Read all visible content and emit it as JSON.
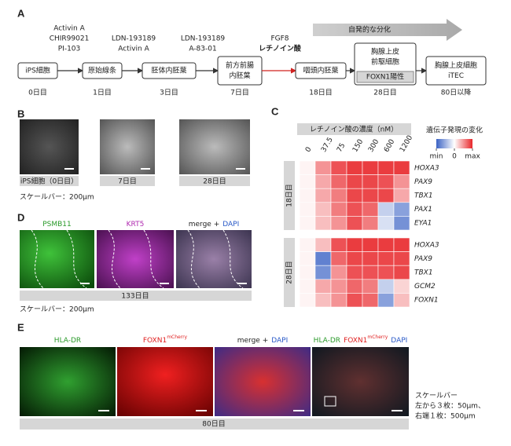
{
  "panels": {
    "A": {
      "label": "A",
      "arrow": "自発的な分化",
      "stages": [
        {
          "name": [
            "iPS細胞"
          ],
          "day": "0日目"
        },
        {
          "name": [
            "原始線条"
          ],
          "day": "1日目"
        },
        {
          "name": [
            "胚体内胚葉"
          ],
          "day": "3日目"
        },
        {
          "name": [
            "前方前腸",
            "内胚葉"
          ],
          "day": "7日目"
        },
        {
          "name": [
            "咽頭内胚葉"
          ],
          "day": "18日目"
        },
        {
          "name": [
            "胸腺上皮",
            "前駆細胞"
          ],
          "marker": "FOXN1陽性",
          "day": "28日目"
        },
        {
          "name": [
            "胸腺上皮細胞",
            "iTEC"
          ],
          "day": "80日以降"
        }
      ],
      "factors": [
        [
          "Activin A",
          "CHIR99021",
          "PI-103"
        ],
        [
          "LDN-193189",
          "Activin A"
        ],
        [
          "LDN-193189",
          "A-83-01"
        ],
        [
          "FGF8",
          "レチノイン酸"
        ]
      ]
    },
    "B": {
      "label": "B",
      "images": [
        "iPS細胞（0日目）",
        "7日目",
        "28日目"
      ],
      "scale": "スケールバー：200μm"
    },
    "C": {
      "label": "C",
      "header": "レチノイン酸の濃度（nM）",
      "concentrations": [
        0,
        37.5,
        75,
        150,
        300,
        600,
        1200
      ],
      "legend": {
        "title": "遺伝子発現の変化",
        "ticks": [
          {
            "value": -1,
            "label": "min"
          },
          0,
          {
            "value": 1,
            "label": "max"
          }
        ],
        "colors": [
          "#3a62c4",
          "#ffffff",
          "#e8262a"
        ]
      },
      "groups": [
        {
          "name": "18日目",
          "genes": [
            "HOXA3",
            "PAX9",
            "TBX1",
            "PAX1",
            "EYA1"
          ],
          "values": [
            [
              0.05,
              0.5,
              0.8,
              0.9,
              0.9,
              0.9,
              0.9
            ],
            [
              0.05,
              0.4,
              0.7,
              0.85,
              0.85,
              0.8,
              0.5
            ],
            [
              0.05,
              0.4,
              0.6,
              0.85,
              0.85,
              0.85,
              0.4
            ],
            [
              0.05,
              0.3,
              0.6,
              0.8,
              0.7,
              -0.3,
              -0.6
            ],
            [
              0.05,
              0.3,
              0.5,
              0.8,
              0.6,
              -0.2,
              -0.7
            ]
          ]
        },
        {
          "name": "28日目",
          "genes": [
            "HOXA3",
            "PAX9",
            "TBX1",
            "GCM2",
            "FOXN1"
          ],
          "values": [
            [
              0.05,
              0.3,
              0.8,
              0.9,
              0.9,
              0.9,
              0.9
            ],
            [
              0.05,
              -0.8,
              0.7,
              0.85,
              0.85,
              0.85,
              0.85
            ],
            [
              0.05,
              -0.7,
              0.5,
              0.8,
              0.8,
              0.8,
              0.85
            ],
            [
              0.05,
              0.4,
              0.5,
              0.7,
              0.6,
              -0.3,
              0.2
            ],
            [
              0.05,
              0.3,
              0.5,
              0.8,
              0.7,
              -0.6,
              0.3
            ]
          ]
        }
      ]
    },
    "D": {
      "label": "D",
      "titles": [
        [
          {
            "text": "PSMB11",
            "color": "#2a9a2a"
          }
        ],
        [
          {
            "text": "KRT5",
            "color": "#b02ab0"
          }
        ],
        [
          {
            "text": "merge +",
            "color": "#222222"
          },
          {
            "text": "DAPI",
            "color": "#2a5ac8"
          }
        ]
      ],
      "day": "133日目",
      "scale": "スケールバー：200μm"
    },
    "E": {
      "label": "E",
      "titles": [
        [
          {
            "text": "HLA-DR",
            "color": "#2a9a2a"
          }
        ],
        [
          {
            "text": "FOXN1",
            "sup": "mCherry",
            "color": "#e02020"
          }
        ],
        [
          {
            "text": "merge +",
            "color": "#222222"
          },
          {
            "text": "DAPI",
            "color": "#2a5ac8"
          }
        ],
        [
          {
            "text": "HLA-DR",
            "color": "#2a9a2a"
          },
          {
            "text": "FOXN1",
            "sup": "mCherry",
            "color": "#e02020"
          },
          {
            "text": "DAPI",
            "color": "#2a5ac8"
          }
        ]
      ],
      "day": "80日目",
      "scale": [
        "スケールバー",
        "左から３枚：50μm、",
        "右端１枚：500μm"
      ]
    }
  }
}
